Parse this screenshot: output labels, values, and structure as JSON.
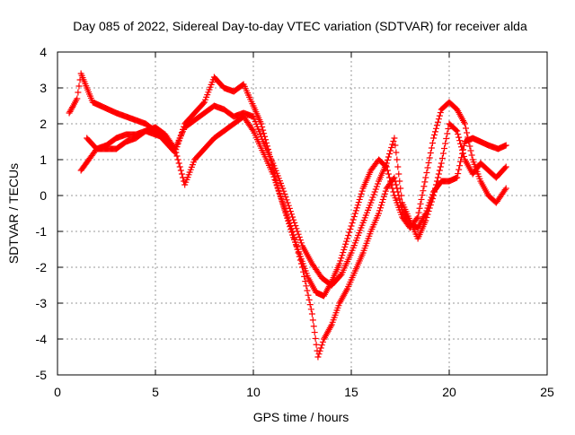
{
  "chart_data": {
    "type": "scatter",
    "title": "Day 085 of 2022, Sidereal Day-to-day VTEC variation (SDTVAR) for receiver alda",
    "xlabel": "GPS time / hours",
    "ylabel": "SDTVAR / TECUs",
    "xlim": [
      0,
      25
    ],
    "ylim": [
      -5,
      4
    ],
    "xticks": [
      "0",
      "5",
      "10",
      "15",
      "20",
      "25"
    ],
    "yticks": [
      "-5",
      "-4",
      "-3",
      "-2",
      "-1",
      "0",
      "1",
      "2",
      "3",
      "4"
    ],
    "grid": true,
    "legend": "none",
    "marker": "plus",
    "color": "#ff0000",
    "series": [
      {
        "x": [
          0.6,
          0.8,
          1.0,
          1.2,
          1.5,
          1.8,
          2.2,
          2.6,
          3.0,
          3.5,
          4.0,
          4.5,
          5.0,
          5.5,
          6.0,
          6.5,
          7.0,
          7.5,
          8.0,
          8.5,
          9.0,
          9.5,
          10.0,
          10.4,
          10.8,
          11.2,
          11.6,
          12.0,
          12.4,
          12.8,
          13.2,
          13.6,
          14.0,
          14.4,
          14.8,
          15.2,
          15.6,
          16.0,
          16.4,
          16.8,
          17.2,
          17.6,
          18.0,
          18.4,
          18.8,
          19.2,
          19.6,
          20.0,
          20.4,
          20.8,
          21.2,
          21.6,
          22.0,
          22.4,
          22.9
        ],
        "y": [
          2.3,
          2.5,
          2.7,
          3.4,
          3.0,
          2.6,
          2.5,
          2.4,
          2.3,
          2.2,
          2.1,
          2.0,
          1.8,
          1.5,
          1.2,
          2.0,
          2.3,
          2.6,
          3.3,
          3.0,
          2.9,
          3.1,
          2.5,
          2.0,
          1.2,
          0.3,
          -0.4,
          -1.1,
          -1.7,
          -2.3,
          -2.7,
          -2.8,
          -2.4,
          -1.9,
          -1.2,
          -0.5,
          0.2,
          0.7,
          1.0,
          0.8,
          0.0,
          -0.6,
          -0.9,
          -0.6,
          0.5,
          1.6,
          2.4,
          2.6,
          2.4,
          2.0,
          1.0,
          0.4,
          0.0,
          -0.2,
          0.2
        ]
      },
      {
        "x": [
          1.2,
          1.6,
          2.0,
          2.5,
          3.0,
          3.5,
          4.0,
          4.5,
          5.0,
          5.5,
          6.0,
          6.5,
          7.0,
          7.5,
          8.0,
          8.5,
          9.0,
          9.5,
          10.0,
          10.5,
          11.0,
          11.5,
          12.0,
          12.5,
          13.0,
          13.3,
          13.6,
          14.0,
          14.4,
          14.8,
          15.2,
          15.6,
          16.0,
          16.4,
          16.8,
          17.2,
          17.6,
          18.0,
          18.4,
          18.8,
          19.2,
          19.6,
          20.0,
          20.4,
          20.8,
          21.2,
          21.6,
          22.0,
          22.5,
          22.9
        ],
        "y": [
          0.7,
          1.0,
          1.3,
          1.3,
          1.3,
          1.5,
          1.6,
          1.8,
          1.9,
          1.7,
          1.3,
          0.3,
          1.0,
          1.3,
          1.6,
          1.8,
          2.0,
          2.2,
          1.8,
          1.2,
          0.6,
          -0.2,
          -1.0,
          -2.0,
          -3.3,
          -4.5,
          -4.0,
          -3.6,
          -3.0,
          -2.6,
          -2.1,
          -1.6,
          -1.0,
          -0.5,
          0.2,
          0.5,
          -0.4,
          -0.8,
          -0.9,
          -0.5,
          0.1,
          0.4,
          0.4,
          0.5,
          1.5,
          1.6,
          1.5,
          1.4,
          1.3,
          1.4
        ]
      },
      {
        "x": [
          1.5,
          2.0,
          2.5,
          3.0,
          3.5,
          4.0,
          4.5,
          5.0,
          5.5,
          6.0,
          6.5,
          7.0,
          7.5,
          8.0,
          8.5,
          9.0,
          9.5,
          10.0,
          10.5,
          11.0,
          11.5,
          12.0,
          12.5,
          13.0,
          13.5,
          14.0,
          14.5,
          15.0,
          15.5,
          16.0,
          16.4,
          16.8,
          17.2,
          17.6,
          18.0,
          18.4,
          18.8,
          19.2,
          19.6,
          20.0,
          20.4,
          20.8,
          21.2,
          21.6,
          22.0,
          22.4,
          22.9
        ],
        "y": [
          1.6,
          1.3,
          1.4,
          1.6,
          1.7,
          1.7,
          1.8,
          1.7,
          1.6,
          1.3,
          1.9,
          2.1,
          2.3,
          2.5,
          2.4,
          2.2,
          2.3,
          2.2,
          1.5,
          0.9,
          0.2,
          -0.6,
          -1.4,
          -1.9,
          -2.3,
          -2.5,
          -2.2,
          -1.6,
          -0.9,
          -0.2,
          0.4,
          0.9,
          1.6,
          -0.2,
          -0.7,
          -1.2,
          -0.7,
          0.0,
          0.9,
          2.0,
          1.8,
          1.0,
          0.6,
          0.9,
          0.7,
          0.5,
          0.8
        ]
      }
    ]
  }
}
